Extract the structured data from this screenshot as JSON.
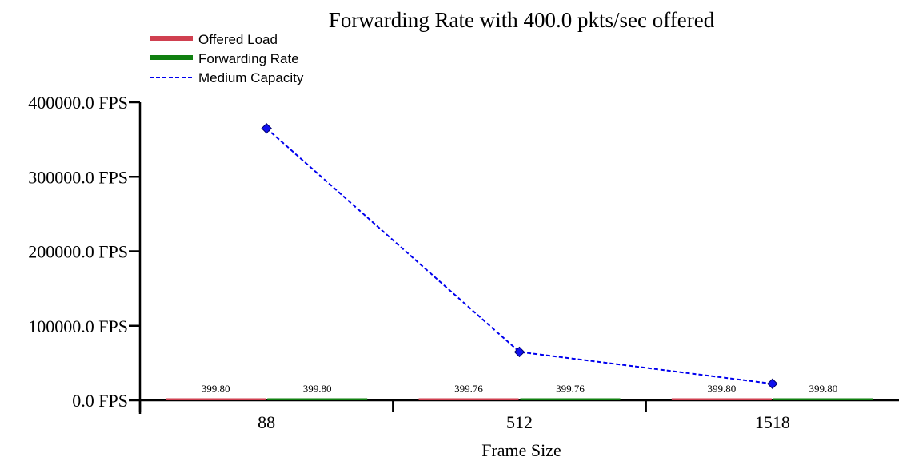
{
  "chart_data": {
    "type": "line",
    "title": "Forwarding Rate with 400.0 pkts/sec offered",
    "xlabel": "Frame Size",
    "ylabel": "",
    "categories": [
      "88",
      "512",
      "1518"
    ],
    "ylim": [
      0,
      400000
    ],
    "yticks": [
      0,
      100000,
      200000,
      300000,
      400000
    ],
    "ytick_labels": [
      "0.0 FPS",
      "100000.0 FPS",
      "200000.0 FPS",
      "300000.0 FPS",
      "400000.0 FPS"
    ],
    "grid": false,
    "legend_position": "top-left",
    "series": [
      {
        "name": "Offered Load",
        "color": "#d04050",
        "style": "solid-bar",
        "values": [
          399.8,
          399.76,
          399.8
        ],
        "labels": [
          "399.80",
          "399.76",
          "399.80"
        ]
      },
      {
        "name": "Forwarding Rate",
        "color": "#108010",
        "style": "solid-bar",
        "values": [
          399.8,
          399.76,
          399.8
        ],
        "labels": [
          "399.80",
          "399.76",
          "399.80"
        ]
      },
      {
        "name": "Medium Capacity",
        "color": "#0000ee",
        "style": "dashed-line",
        "marker": "diamond",
        "values": [
          364964,
          64935,
          22212
        ]
      }
    ]
  }
}
